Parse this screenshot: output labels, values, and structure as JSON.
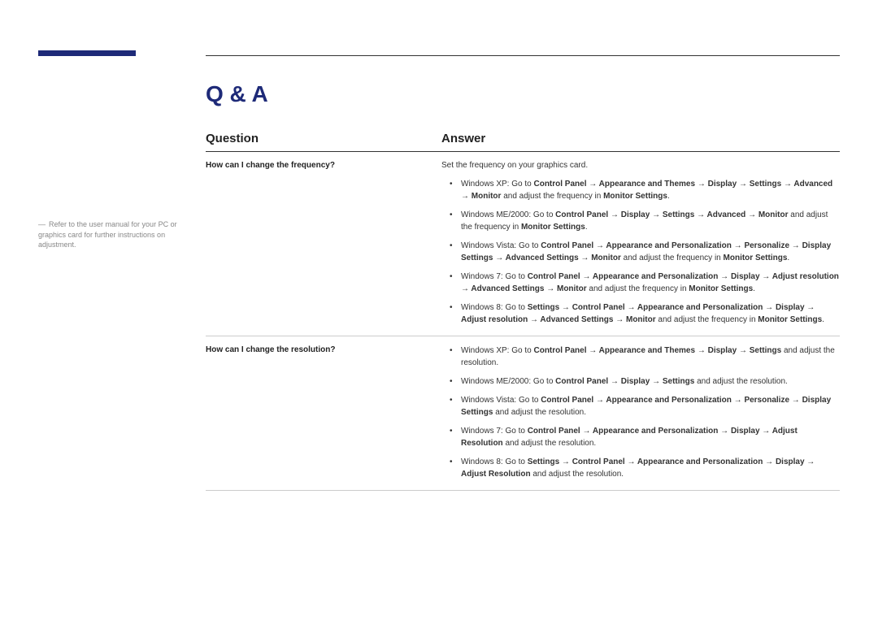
{
  "accent_color": "#1e2a78",
  "title": "Q & A",
  "sidebar_note": "Refer to the user manual for your PC or graphics card for further instructions on adjustment.",
  "headers": {
    "question": "Question",
    "answer": "Answer"
  },
  "rows": [
    {
      "question": "How can I change the frequency?",
      "intro": "Set the frequency on your graphics card.",
      "bullets": [
        {
          "html": "Windows XP: Go to <span class='b'>Control Panel → Appearance and Themes → Display → Settings → Advanced → Monitor</span> and adjust the frequency in <span class='b'>Monitor Settings</span>."
        },
        {
          "html": "Windows ME/2000: Go to <span class='b'>Control Panel → Display → Settings → Advanced → Monitor</span> and adjust the frequency in <span class='b'>Monitor Settings</span>."
        },
        {
          "html": "Windows Vista: Go to <span class='b'>Control Panel → Appearance and Personalization → Personalize → Display Settings → Advanced Settings → Monitor</span> and adjust the frequency in <span class='b'>Monitor Settings</span>."
        },
        {
          "html": "Windows 7: Go to <span class='b'>Control Panel → Appearance and Personalization → Display → Adjust resolution → Advanced Settings → Monitor</span> and adjust the frequency in <span class='b'>Monitor Settings</span>."
        },
        {
          "html": "Windows 8: Go to <span class='b'>Settings → Control Panel → Appearance and Personalization → Display → Adjust resolution → Advanced Settings → Monitor</span> and adjust the frequency in <span class='b'>Monitor Settings</span>."
        }
      ]
    },
    {
      "question": "How can I change the resolution?",
      "intro": "",
      "bullets": [
        {
          "html": "Windows XP: Go to <span class='b'>Control Panel → Appearance and Themes → Display → Settings</span> and adjust the resolution."
        },
        {
          "html": "Windows ME/2000: Go to <span class='b'>Control Panel → Display → Settings</span> and adjust the resolution."
        },
        {
          "html": "Windows Vista: Go to <span class='b'>Control Panel → Appearance and Personalization → Personalize → Display Settings</span> and adjust the resolution."
        },
        {
          "html": "Windows 7: Go to <span class='b'>Control Panel → Appearance and Personalization → Display → Adjust Resolution</span> and adjust the resolution."
        },
        {
          "html": "Windows 8: Go to <span class='b'>Settings → Control Panel → Appearance and Personalization → Display → Adjust Resolution</span> and adjust the resolution."
        }
      ]
    }
  ]
}
